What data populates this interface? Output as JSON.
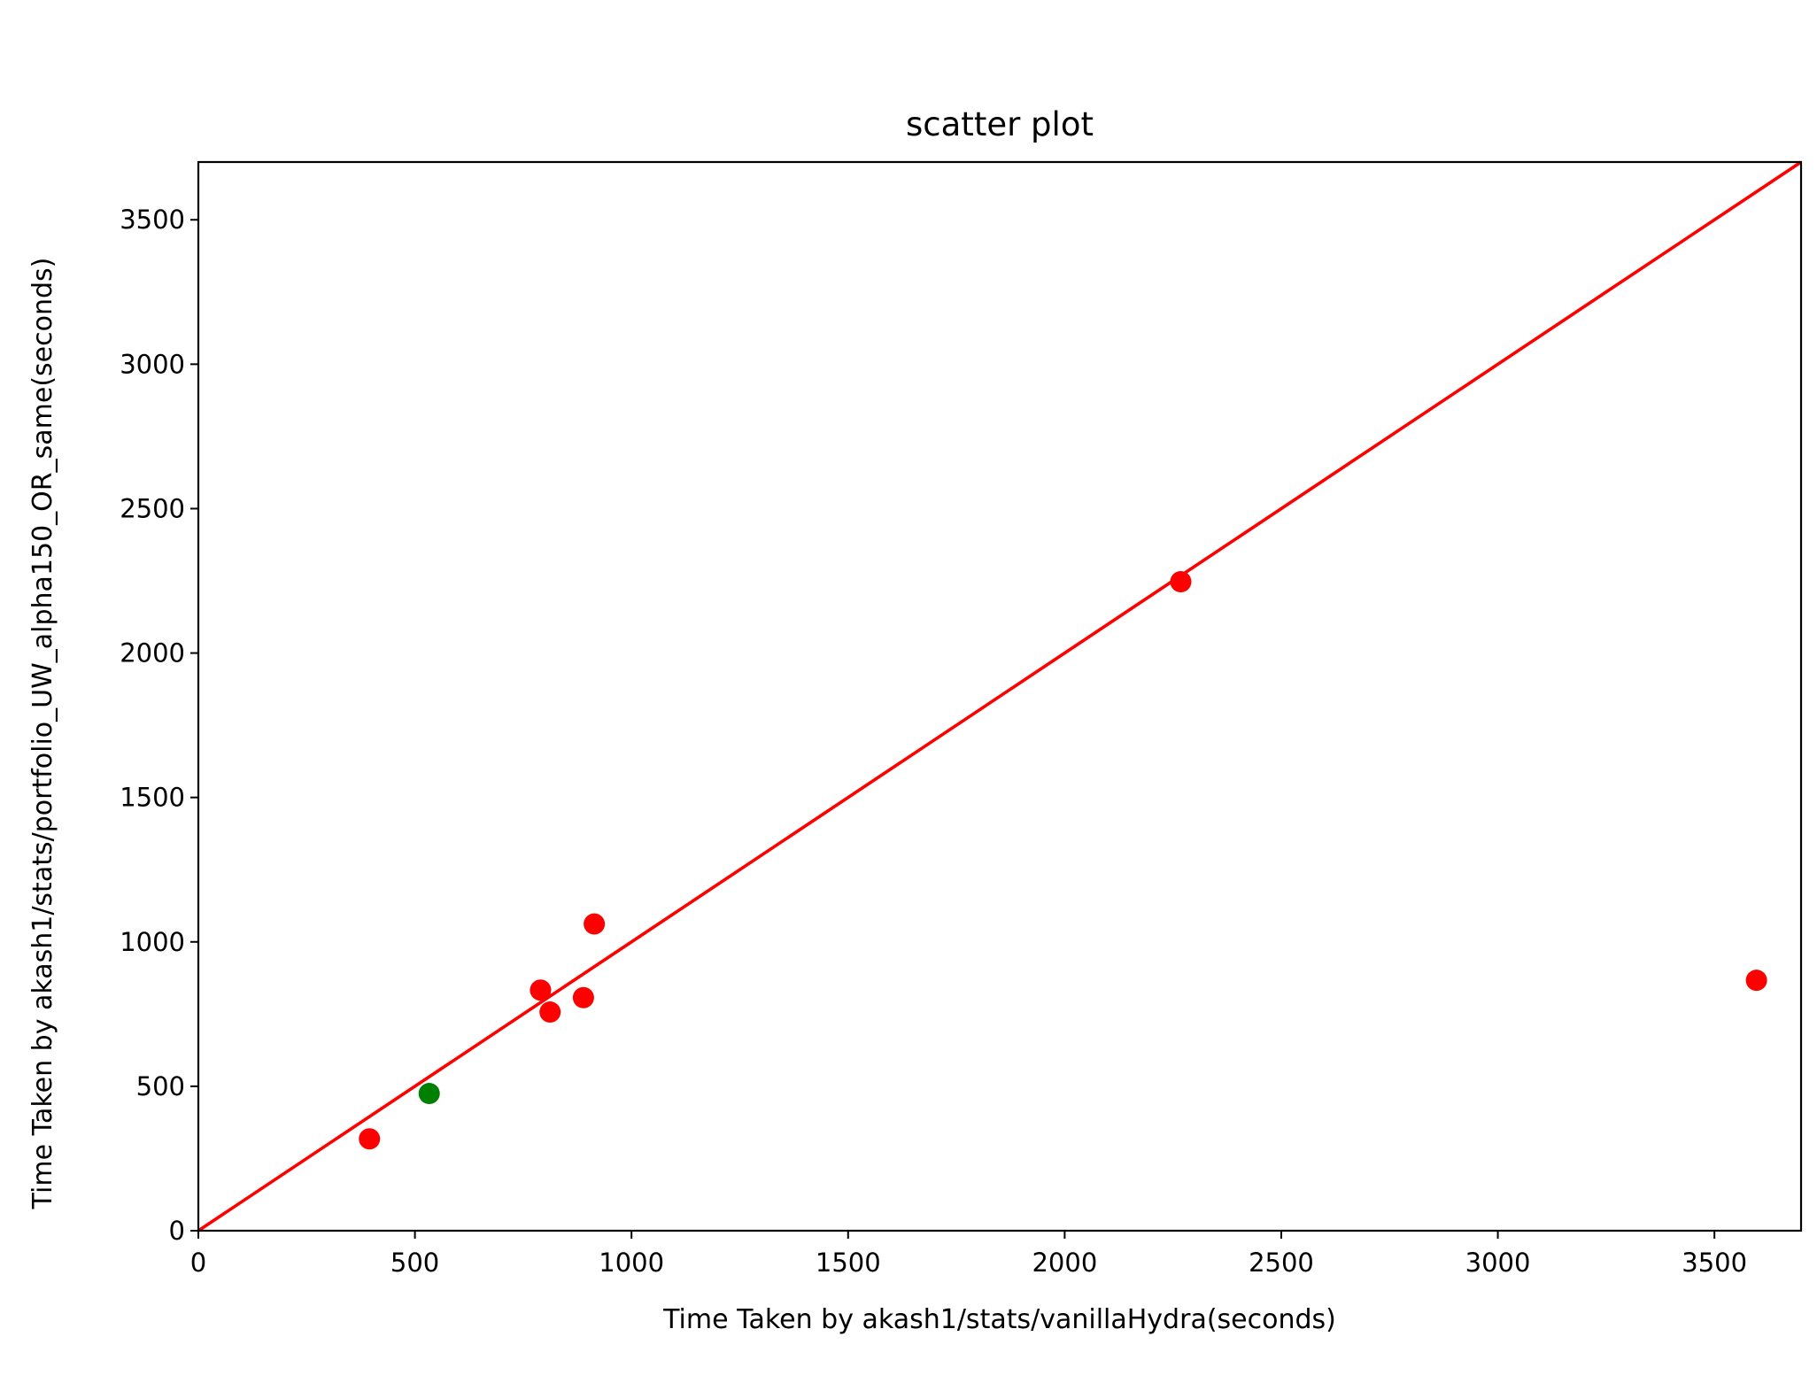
{
  "chart_data": {
    "type": "scatter",
    "title": "scatter plot",
    "xlabel": "Time Taken by akash1/stats/vanillaHydra(seconds)",
    "ylabel": "Time Taken by akash1/stats/portfolio_UW_alpha150_OR_same(seconds)",
    "xlim": [
      0,
      3700
    ],
    "ylim": [
      0,
      3700
    ],
    "x_ticks": [
      0,
      500,
      1000,
      1500,
      2000,
      2500,
      3000,
      3500
    ],
    "y_ticks": [
      0,
      500,
      1000,
      1500,
      2000,
      2500,
      3000,
      3500
    ],
    "grid": false,
    "points": [
      {
        "x": 395,
        "y": 318,
        "color": "#ff0000"
      },
      {
        "x": 533,
        "y": 475,
        "color": "#008000"
      },
      {
        "x": 790,
        "y": 833,
        "color": "#ff0000"
      },
      {
        "x": 812,
        "y": 757,
        "color": "#ff0000"
      },
      {
        "x": 889,
        "y": 807,
        "color": "#ff0000"
      },
      {
        "x": 914,
        "y": 1062,
        "color": "#ff0000"
      },
      {
        "x": 2268,
        "y": 2247,
        "color": "#ff0000"
      },
      {
        "x": 3597,
        "y": 867,
        "color": "#ff0000"
      }
    ],
    "reference_line": {
      "from": [
        0,
        0
      ],
      "to": [
        3700,
        3700
      ],
      "color": "#ff0000"
    }
  }
}
